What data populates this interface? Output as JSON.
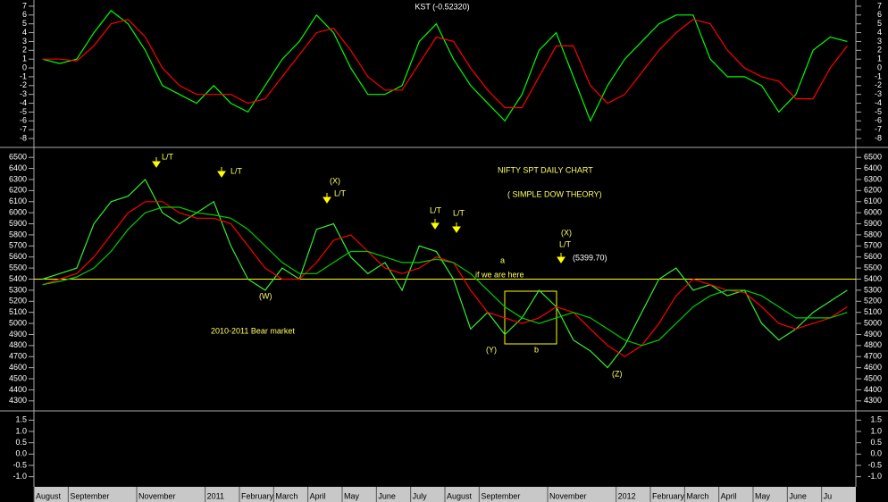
{
  "chart_data": [
    {
      "type": "line",
      "title": "KST (-0.52320)",
      "ylim": [
        -8.5,
        7.5
      ],
      "yticks": [
        7,
        6,
        5,
        4,
        3,
        2,
        1,
        0,
        -1,
        -2,
        -3,
        -4,
        -5,
        -6,
        -7,
        -8
      ],
      "series": [
        {
          "color": "#00ff00",
          "values": [
            1,
            0.5,
            1,
            4,
            6.5,
            5,
            2,
            -2,
            -3,
            -4,
            -2,
            -4,
            -5,
            -2,
            1,
            3,
            6,
            4,
            0,
            -3,
            -3,
            -2,
            3,
            5,
            1,
            -2,
            -4,
            -6,
            -3,
            2,
            4,
            -1,
            -6,
            -2,
            1,
            3,
            5,
            6,
            6,
            1,
            -1,
            -1,
            -2,
            -5,
            -3,
            2,
            3.5,
            3
          ]
        },
        {
          "color": "#ff0000",
          "values": [
            1,
            1,
            0.8,
            2.5,
            5,
            5.5,
            3.5,
            0,
            -2,
            -3,
            -3,
            -3,
            -4,
            -3.5,
            -1,
            1.5,
            4,
            4.5,
            2,
            -1,
            -2.5,
            -2.5,
            0.5,
            3.5,
            3,
            0,
            -2.5,
            -4.5,
            -4.5,
            -1,
            2.5,
            2.5,
            -2,
            -4,
            -3,
            -0.5,
            2,
            4,
            5.5,
            5,
            2,
            0,
            -1,
            -1.5,
            -3.5,
            -3.5,
            0,
            2.5
          ]
        }
      ]
    },
    {
      "type": "line",
      "categories": [
        "August",
        null,
        "September",
        null,
        null,
        null,
        "November",
        null,
        null,
        null,
        "2011",
        null,
        "February",
        null,
        "March",
        null,
        "April",
        null,
        "May",
        null,
        "June",
        null,
        "July",
        null,
        "August",
        null,
        "September",
        null,
        null,
        null,
        "November",
        null,
        null,
        null,
        "2012",
        null,
        "February",
        null,
        "March",
        null,
        "April",
        null,
        "May",
        null,
        "June",
        null,
        "Ju",
        null
      ],
      "ylim": [
        4250,
        6550
      ],
      "yticks": [
        6500,
        6400,
        6300,
        6200,
        6100,
        6000,
        5900,
        5800,
        5700,
        5600,
        5500,
        5400,
        5300,
        5200,
        5100,
        5000,
        4900,
        4800,
        4700,
        4600,
        4500,
        4400,
        4300
      ],
      "hline": {
        "value": 5399.7,
        "label": "(5399.70)",
        "color": "#ffff00"
      },
      "annotations": [
        "L/T",
        "L/T",
        "(X)",
        "L/T",
        "L/T",
        "L/T",
        "(X)",
        "L/T",
        "NIFTY SPT DAILY CHART",
        "( SIMPLE DOW THEORY)",
        "(W)",
        "if we are here",
        "a",
        "(Y)",
        "b",
        "(Z)",
        "2010-2011 Bear market"
      ],
      "series": [
        {
          "color": "#33ee33",
          "values": [
            5400,
            5450,
            5500,
            5900,
            6100,
            6150,
            6300,
            6000,
            5900,
            6000,
            6100,
            5700,
            5400,
            5300,
            5500,
            5400,
            5850,
            5900,
            5600,
            5450,
            5550,
            5300,
            5700,
            5650,
            5400,
            4950,
            5100,
            4900,
            5050,
            5300,
            5150,
            4850,
            4750,
            4600,
            4800,
            5100,
            5400,
            5500,
            5300,
            5350,
            5250,
            5300,
            5000,
            4850,
            4950,
            5100,
            5200,
            5300
          ]
        },
        {
          "color": "#ff0000",
          "values": [
            5350,
            5400,
            5450,
            5600,
            5800,
            6000,
            6100,
            6100,
            6000,
            5950,
            5950,
            5900,
            5700,
            5500,
            5400,
            5400,
            5550,
            5750,
            5800,
            5650,
            5500,
            5450,
            5500,
            5600,
            5550,
            5300,
            5100,
            5050,
            5000,
            5050,
            5150,
            5100,
            4950,
            4800,
            4700,
            4800,
            5000,
            5250,
            5400,
            5350,
            5300,
            5280,
            5150,
            5000,
            4950,
            5000,
            5050,
            5150
          ]
        },
        {
          "color": "#00cc00",
          "values": [
            5350,
            5380,
            5420,
            5500,
            5650,
            5850,
            6000,
            6050,
            6050,
            6000,
            5980,
            5950,
            5850,
            5700,
            5550,
            5450,
            5450,
            5550,
            5650,
            5650,
            5600,
            5550,
            5550,
            5580,
            5550,
            5450,
            5300,
            5150,
            5050,
            5000,
            5050,
            5100,
            5050,
            4950,
            4850,
            4800,
            4850,
            5000,
            5150,
            5250,
            5300,
            5300,
            5250,
            5150,
            5050,
            5050,
            5050,
            5100
          ]
        }
      ]
    },
    {
      "type": "line",
      "ylim": [
        -1.25,
        1.75
      ],
      "yticks": [
        1.5,
        {
          "value": 1,
          "label": "1.0"
        },
        0.5,
        {
          "value": 0,
          "label": "0.0"
        },
        -0.5,
        {
          "value": -1,
          "label": "-1.0"
        }
      ],
      "series": []
    }
  ]
}
